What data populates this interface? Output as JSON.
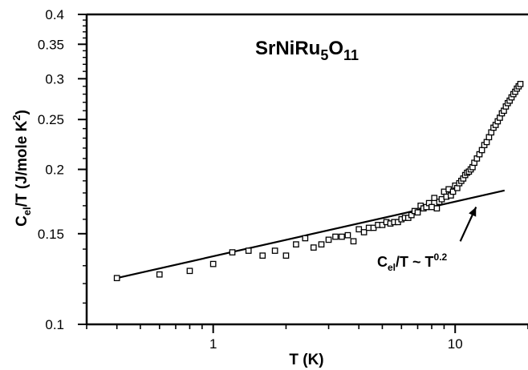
{
  "chart_data": {
    "type": "scatter",
    "xscale": "log",
    "yscale": "log",
    "xlim": [
      0.3,
      20
    ],
    "ylim": [
      0.1,
      0.4
    ],
    "grid": false,
    "x_ticks": [
      {
        "value": 1,
        "label": "1"
      },
      {
        "value": 10,
        "label": "10"
      }
    ],
    "y_ticks": [
      {
        "value": 0.1,
        "label": "0.1"
      },
      {
        "value": 0.15,
        "label": "0.15"
      },
      {
        "value": 0.2,
        "label": "0.2"
      },
      {
        "value": 0.25,
        "label": "0.25"
      },
      {
        "value": 0.3,
        "label": "0.3"
      },
      {
        "value": 0.35,
        "label": "0.35"
      },
      {
        "value": 0.4,
        "label": "0.4"
      }
    ],
    "xlabel": "T (K)",
    "ylabel": {
      "base": "C",
      "sub": "el",
      "mid": "/T (J/mole K",
      "sup": "2",
      "tail": ")"
    },
    "formula": [
      {
        "text": "SrNiRu",
        "shift": "base"
      },
      {
        "text": "5",
        "shift": "sub"
      },
      {
        "text": "O",
        "shift": "base"
      },
      {
        "text": "11",
        "shift": "sub"
      }
    ],
    "fit_label": {
      "base": "C",
      "sub": "el",
      "mid": "/T ~ T",
      "sup": "0.2"
    },
    "fit_line": {
      "x": [
        0.4,
        16
      ],
      "y": [
        0.123,
        0.182
      ]
    },
    "annotation_arrow": {
      "from": [
        10.5,
        0.145
      ],
      "to": [
        12.2,
        0.169
      ]
    },
    "series": [
      {
        "marker": "open-square",
        "x": [
          0.4,
          0.6,
          0.8,
          1.0,
          1.2,
          1.4,
          1.6,
          1.8,
          2.0,
          2.2,
          2.4,
          2.6,
          2.8,
          3.0,
          3.2,
          3.4,
          3.6,
          3.8,
          4.0,
          4.2,
          4.4,
          4.6,
          4.8,
          5.0,
          5.2,
          5.4,
          5.6,
          5.8,
          6.0,
          6.2,
          6.4,
          6.6,
          6.8,
          7.0,
          7.2,
          7.4,
          7.6,
          7.8,
          8.0,
          8.2,
          8.4,
          8.6,
          8.8,
          9.0,
          9.2,
          9.4,
          9.6,
          9.8,
          10.0,
          10.2,
          10.4,
          10.6,
          10.8,
          11.0,
          11.2,
          11.4,
          11.6,
          11.8,
          12.0,
          12.3,
          12.6,
          12.9,
          13.2,
          13.5,
          13.8,
          14.1,
          14.4,
          14.7,
          15.0,
          15.3,
          15.6,
          15.9,
          16.2,
          16.5,
          16.8,
          17.1,
          17.4,
          17.7,
          18.0,
          18.3,
          18.6
        ],
        "y": [
          0.123,
          0.125,
          0.127,
          0.131,
          0.138,
          0.139,
          0.136,
          0.139,
          0.136,
          0.143,
          0.147,
          0.141,
          0.143,
          0.146,
          0.148,
          0.148,
          0.149,
          0.145,
          0.153,
          0.151,
          0.154,
          0.154,
          0.156,
          0.156,
          0.158,
          0.157,
          0.158,
          0.158,
          0.16,
          0.161,
          0.161,
          0.163,
          0.166,
          0.165,
          0.17,
          0.168,
          0.169,
          0.172,
          0.169,
          0.176,
          0.168,
          0.173,
          0.175,
          0.181,
          0.177,
          0.183,
          0.178,
          0.181,
          0.186,
          0.184,
          0.188,
          0.19,
          0.192,
          0.195,
          0.197,
          0.198,
          0.2,
          0.202,
          0.206,
          0.21,
          0.214,
          0.218,
          0.223,
          0.226,
          0.231,
          0.236,
          0.241,
          0.244,
          0.248,
          0.252,
          0.257,
          0.26,
          0.265,
          0.269,
          0.272,
          0.276,
          0.28,
          0.283,
          0.287,
          0.29,
          0.293
        ]
      }
    ]
  }
}
